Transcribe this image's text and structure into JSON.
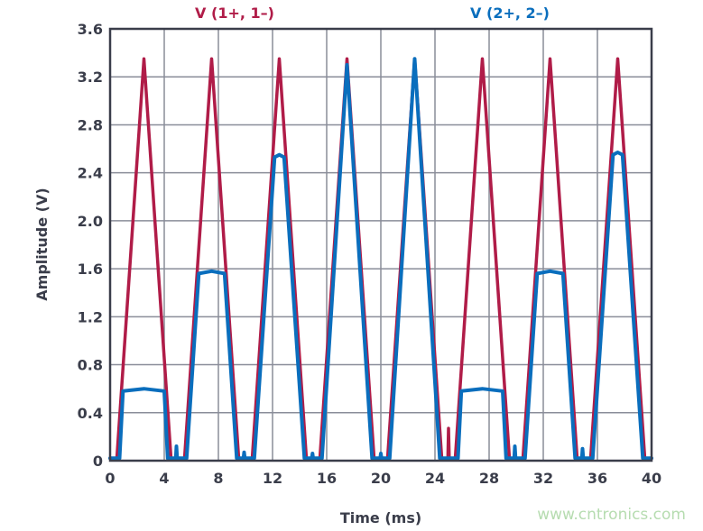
{
  "chart_data": {
    "type": "line",
    "title": "",
    "xlabel": "Time (ms)",
    "ylabel": "Amplitude (V)",
    "xlim": [
      0,
      40
    ],
    "ylim": [
      0,
      3.6
    ],
    "xticks": [
      "0",
      "4",
      "8",
      "12",
      "16",
      "20",
      "24",
      "28",
      "32",
      "36",
      "40"
    ],
    "yticks": [
      "0",
      "0.4",
      "0.8",
      "1.2",
      "1.6",
      "2.0",
      "2.4",
      "2.8",
      "3.2",
      "3.6"
    ],
    "grid": true,
    "legend_placement": "top",
    "series": [
      {
        "name": "V (1+, 1–)",
        "color": "#b01c48",
        "x": [
          0,
          0.5,
          2.5,
          4.5,
          5.5,
          7.5,
          9.5,
          10.5,
          12.5,
          14.5,
          15.5,
          17.5,
          19.5,
          20.5,
          22.5,
          24.5,
          24.95,
          25.0,
          25.05,
          25.5,
          27.5,
          29.5,
          30.5,
          32.5,
          34.5,
          35.5,
          37.5,
          39.5,
          40
        ],
        "y": [
          0.02,
          0.02,
          3.35,
          0.02,
          0.02,
          3.35,
          0.02,
          0.02,
          3.35,
          0.02,
          0.02,
          3.35,
          0.02,
          0.02,
          3.35,
          0.02,
          0.02,
          0.27,
          0.02,
          0.02,
          3.35,
          0.02,
          0.02,
          3.35,
          0.02,
          0.02,
          3.35,
          0.02,
          0.02
        ]
      },
      {
        "name": "V (2+, 2–)",
        "color": "#0a6ebd",
        "x": [
          0,
          0.7,
          0.95,
          2.5,
          4.0,
          4.25,
          4.85,
          4.9,
          4.95,
          5.65,
          6.55,
          7.5,
          8.45,
          9.35,
          9.85,
          9.9,
          9.95,
          10.65,
          12.15,
          12.5,
          12.85,
          14.35,
          14.9,
          14.95,
          15.0,
          15.65,
          17.5,
          19.35,
          19.95,
          20.0,
          20.05,
          20.65,
          22.5,
          24.35,
          25.7,
          25.95,
          27.5,
          29.0,
          29.25,
          29.85,
          29.9,
          29.95,
          30.65,
          31.55,
          32.5,
          33.45,
          34.35,
          34.85,
          34.9,
          34.95,
          35.65,
          37.15,
          37.5,
          37.85,
          39.35,
          40
        ],
        "y": [
          0.02,
          0.02,
          0.58,
          0.6,
          0.58,
          0.02,
          0.02,
          0.12,
          0.02,
          0.02,
          1.56,
          1.58,
          1.56,
          0.02,
          0.02,
          0.07,
          0.02,
          0.02,
          2.53,
          2.55,
          2.53,
          0.02,
          0.02,
          0.06,
          0.02,
          0.02,
          3.3,
          0.02,
          0.02,
          0.06,
          0.02,
          0.02,
          3.35,
          0.02,
          0.02,
          0.58,
          0.6,
          0.58,
          0.02,
          0.02,
          0.12,
          0.02,
          0.02,
          1.56,
          1.58,
          1.56,
          0.02,
          0.02,
          0.1,
          0.02,
          0.02,
          2.55,
          2.57,
          2.55,
          0.02,
          0.02
        ]
      }
    ]
  },
  "watermark": "www.cntronics.com",
  "colors": {
    "axis": "#3a3d4a",
    "grid": "#8a8d99",
    "watermark": "#b6dcb0"
  }
}
